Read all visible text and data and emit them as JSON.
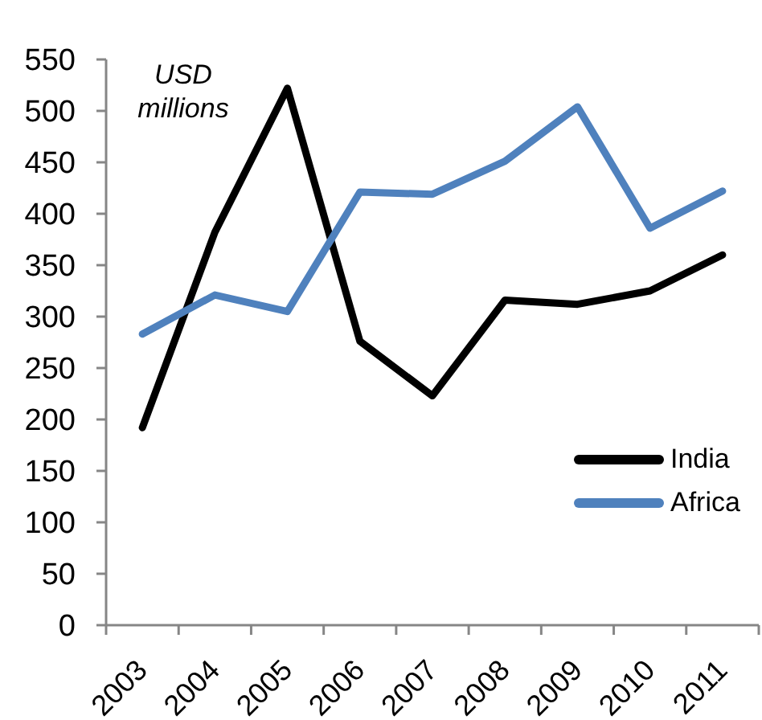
{
  "chart_data": {
    "type": "line",
    "ylabel": "USD millions",
    "categories": [
      "2003",
      "2004",
      "2005",
      "2006",
      "2007",
      "2008",
      "2009",
      "2010",
      "2011"
    ],
    "series": [
      {
        "name": "India",
        "color": "#000000",
        "values": [
          192,
          382,
          522,
          276,
          223,
          316,
          312,
          325,
          360
        ]
      },
      {
        "name": "Africa",
        "color": "#4f81bd",
        "values": [
          283,
          321,
          305,
          421,
          419,
          451,
          504,
          386,
          422
        ]
      }
    ],
    "ylim": [
      0,
      550
    ],
    "yticks": [
      0,
      50,
      100,
      150,
      200,
      250,
      300,
      350,
      400,
      450,
      500,
      550
    ],
    "legend": "right"
  }
}
